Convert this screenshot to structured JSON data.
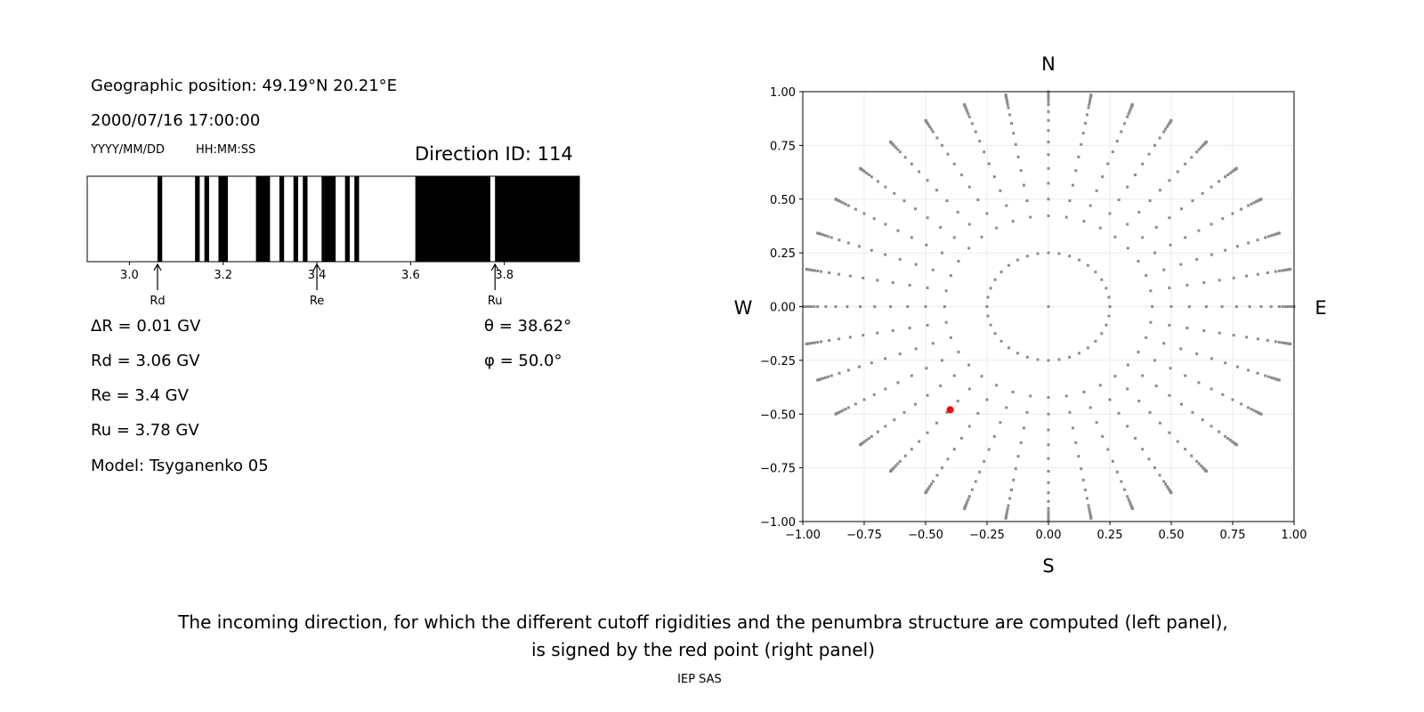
{
  "left_panel": {
    "geo_position": "Geographic position: 49.19°N 20.21°E",
    "datetime": "2000/07/16 17:00:00",
    "date_format": "YYYY/MM/DD",
    "time_format": "HH:MM:SS",
    "direction_id": "Direction ID: 114",
    "delta_r": "ΔR = 0.01 GV",
    "rd": "Rd = 3.06 GV",
    "re": "Re = 3.4 GV",
    "ru": "Ru = 3.78 GV",
    "model": "Model: Tsyganenko 05",
    "theta": "θ = 38.62°",
    "phi": "φ = 50.0°"
  },
  "chart_data": [
    {
      "type": "bar",
      "description_label": "penumbra",
      "xlim": [
        2.91,
        3.96
      ],
      "xticks": [
        "3.0",
        "3.2",
        "3.4",
        "3.6",
        "3.8"
      ],
      "xtick_values": [
        3.0,
        3.2,
        3.4,
        3.6,
        3.8
      ],
      "forbidden_bands_gv": [
        [
          3.06,
          3.07
        ],
        [
          3.14,
          3.15
        ],
        [
          3.16,
          3.17
        ],
        [
          3.19,
          3.21
        ],
        [
          3.27,
          3.3
        ],
        [
          3.32,
          3.33
        ],
        [
          3.35,
          3.36
        ],
        [
          3.37,
          3.38
        ],
        [
          3.41,
          3.44
        ],
        [
          3.46,
          3.47
        ],
        [
          3.48,
          3.49
        ],
        [
          3.61,
          3.77
        ],
        [
          3.78,
          3.96
        ]
      ],
      "markers": [
        {
          "label": "Rd",
          "value": 3.06
        },
        {
          "label": "Re",
          "value": 3.4
        },
        {
          "label": "Ru",
          "value": 3.78
        }
      ],
      "colors": {
        "forbidden": "#000000",
        "allowed": "#ffffff"
      }
    },
    {
      "type": "scatter",
      "xlim": [
        -1,
        1
      ],
      "ylim": [
        -1,
        1
      ],
      "ticks": [
        "−1.00",
        "−0.75",
        "−0.50",
        "−0.25",
        "0.00",
        "0.25",
        "0.50",
        "0.75",
        "1.00"
      ],
      "tick_values": [
        -1,
        -0.75,
        -0.5,
        -0.25,
        0,
        0.25,
        0.5,
        0.75,
        1
      ],
      "grid": true,
      "directions": {
        "N": "N",
        "S": "S",
        "E": "E",
        "W": "W"
      },
      "grid_points": {
        "azimuth_step_deg": 10,
        "inner_zenith_deg": 14.5,
        "zenith_deg": [
          25,
          30,
          35,
          40,
          45,
          50,
          55,
          60,
          65,
          70,
          72.5,
          75,
          77.5,
          80,
          82.5,
          85,
          87.5,
          90
        ]
      },
      "selected_point": {
        "x": -0.4,
        "y": -0.48
      },
      "colors": {
        "grid_points": "#8c8c8c",
        "selected": "#ff0000",
        "gridline": "#ebebeb"
      }
    }
  ],
  "caption": {
    "line1": "The incoming direction, for which the different cutoff rigidities and the penumbra structure are computed (left panel),",
    "line2": "is signed by the red point (right panel)"
  },
  "footer": "IEP SAS"
}
